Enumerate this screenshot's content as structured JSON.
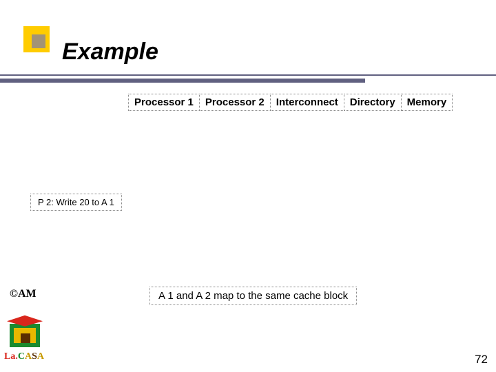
{
  "title": "Example",
  "header_cells": [
    "Processor 1",
    "Processor 2",
    "Interconnect",
    "Directory",
    "Memory"
  ],
  "event_label": "P 2: Write 20 to A 1",
  "note_label": "A 1 and A 2 map to the same cache block",
  "author": "©AM",
  "lacasa": {
    "p1": "La.",
    "p2": "C",
    "p3": "A",
    "p4": "S",
    "p5": "A"
  },
  "page_number": "72",
  "colors": {
    "accent_yellow": "#ffcc00",
    "accent_slate": "#606080",
    "logo_red": "#d9261c",
    "logo_green": "#1a8a2e",
    "logo_yellow": "#e8b800",
    "logo_brown": "#5a2e00"
  }
}
